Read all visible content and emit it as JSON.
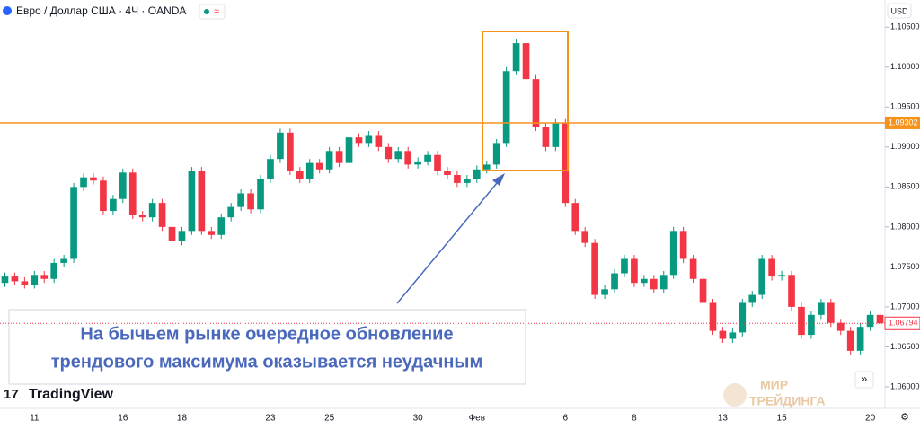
{
  "header": {
    "symbol": "Евро / Доллар США · 4Ч · OANDA",
    "currency": "USD"
  },
  "chart_data": {
    "type": "candlestick",
    "categories": [
      null,
      null,
      null,
      "11",
      null,
      null,
      null,
      null,
      null,
      null,
      null,
      null,
      "16",
      null,
      null,
      null,
      null,
      null,
      "18",
      null,
      null,
      null,
      null,
      null,
      null,
      null,
      null,
      "23",
      null,
      null,
      null,
      null,
      null,
      "25",
      null,
      null,
      null,
      null,
      null,
      null,
      null,
      null,
      "30",
      null,
      null,
      null,
      null,
      null,
      "Фев",
      null,
      null,
      null,
      null,
      null,
      null,
      null,
      null,
      "6",
      null,
      null,
      null,
      null,
      null,
      null,
      "8",
      null,
      null,
      null,
      null,
      null,
      null,
      null,
      null,
      "13",
      null,
      null,
      null,
      null,
      null,
      "15",
      null,
      null,
      null,
      null,
      null,
      null,
      null,
      null,
      "20",
      null
    ],
    "open": [
      1.073,
      1.0738,
      1.0732,
      1.0728,
      1.074,
      1.0735,
      1.0755,
      1.076,
      1.085,
      1.0862,
      1.0858,
      1.082,
      1.0835,
      1.0868,
      1.0815,
      1.0812,
      1.083,
      1.08,
      1.0782,
      1.0795,
      1.087,
      1.0795,
      1.079,
      1.0812,
      1.0825,
      1.0842,
      1.0822,
      1.086,
      1.0885,
      1.0918,
      1.087,
      1.086,
      1.088,
      1.0872,
      1.0895,
      1.088,
      1.0912,
      1.0905,
      1.0915,
      1.09,
      1.0885,
      1.0895,
      1.0878,
      1.0882,
      1.089,
      1.087,
      1.0865,
      1.0855,
      1.086,
      1.0872,
      1.0878,
      1.0905,
      1.0995,
      1.103,
      1.0985,
      1.0925,
      1.09,
      1.093,
      1.083,
      1.0795,
      1.078,
      1.0715,
      1.0722,
      1.0742,
      1.076,
      1.073,
      1.0735,
      1.0722,
      1.074,
      1.0795,
      1.076,
      1.0735,
      1.0705,
      1.067,
      1.066,
      1.0668,
      1.0705,
      1.0715,
      1.076,
      1.0738,
      1.074,
      1.07,
      1.0665,
      1.069,
      1.0705,
      1.068,
      1.067,
      1.0645,
      1.0675,
      1.069
    ],
    "high": [
      1.0743,
      1.0743,
      1.0737,
      1.0745,
      1.0745,
      1.076,
      1.0765,
      1.0855,
      1.0867,
      1.0867,
      1.0863,
      1.084,
      1.0873,
      1.0873,
      1.082,
      1.0835,
      1.0835,
      1.0805,
      1.08,
      1.0875,
      1.0875,
      1.08,
      1.0817,
      1.083,
      1.0847,
      1.0847,
      1.0865,
      1.089,
      1.0923,
      1.0923,
      1.0875,
      1.0885,
      1.0885,
      1.09,
      1.09,
      1.0917,
      1.0917,
      1.092,
      1.092,
      1.0905,
      1.09,
      1.09,
      1.0887,
      1.0895,
      1.0895,
      1.0875,
      1.087,
      1.0865,
      1.0877,
      1.0883,
      1.091,
      1.1,
      1.1035,
      1.1035,
      1.099,
      1.093,
      1.0935,
      1.0935,
      1.0835,
      1.08,
      1.0785,
      1.0727,
      1.0747,
      1.0765,
      1.0765,
      1.074,
      1.074,
      1.0745,
      1.08,
      1.08,
      1.0765,
      1.074,
      1.071,
      1.0675,
      1.0673,
      1.071,
      1.072,
      1.0765,
      1.0765,
      1.0745,
      1.0745,
      1.0705,
      1.0695,
      1.071,
      1.071,
      1.0685,
      1.0675,
      1.068,
      1.0695,
      1.0695
    ],
    "low": [
      1.0725,
      1.0727,
      1.0723,
      1.0723,
      1.073,
      1.073,
      1.075,
      1.0755,
      1.0845,
      1.0853,
      1.0815,
      1.0815,
      1.083,
      1.081,
      1.0807,
      1.0807,
      1.0795,
      1.0777,
      1.0777,
      1.079,
      1.079,
      1.0785,
      1.0785,
      1.0807,
      1.082,
      1.0817,
      1.0817,
      1.0855,
      1.088,
      1.0865,
      1.0855,
      1.0855,
      1.0867,
      1.0867,
      1.0875,
      1.0875,
      1.09,
      1.09,
      1.0895,
      1.088,
      1.088,
      1.0873,
      1.0873,
      1.0877,
      1.0865,
      1.086,
      1.085,
      1.085,
      1.0855,
      1.0867,
      1.0873,
      1.09,
      1.099,
      1.098,
      1.092,
      1.0895,
      1.0895,
      1.0825,
      1.079,
      1.0775,
      1.071,
      1.071,
      1.0717,
      1.0737,
      1.0725,
      1.0725,
      1.0717,
      1.0717,
      1.0735,
      1.0755,
      1.073,
      1.07,
      1.0665,
      1.0655,
      1.0655,
      1.0663,
      1.07,
      1.071,
      1.0733,
      1.0733,
      1.0695,
      1.066,
      1.066,
      1.0685,
      1.0675,
      1.0665,
      1.064,
      1.064,
      1.067,
      1.0674
    ],
    "close": [
      1.0738,
      1.0732,
      1.0728,
      1.074,
      1.0735,
      1.0755,
      1.076,
      1.085,
      1.0862,
      1.0858,
      1.082,
      1.0835,
      1.0868,
      1.0815,
      1.0812,
      1.083,
      1.08,
      1.0782,
      1.0795,
      1.087,
      1.0795,
      1.079,
      1.0812,
      1.0825,
      1.0842,
      1.0822,
      1.086,
      1.0885,
      1.0918,
      1.087,
      1.086,
      1.088,
      1.0872,
      1.0895,
      1.088,
      1.0912,
      1.0905,
      1.0915,
      1.09,
      1.0885,
      1.0895,
      1.0878,
      1.0882,
      1.089,
      1.087,
      1.0865,
      1.0855,
      1.086,
      1.0872,
      1.0878,
      1.0905,
      1.0995,
      1.103,
      1.0985,
      1.0925,
      1.09,
      1.093,
      1.083,
      1.0795,
      1.078,
      1.0715,
      1.0722,
      1.0742,
      1.076,
      1.073,
      1.0735,
      1.0722,
      1.074,
      1.0795,
      1.076,
      1.0735,
      1.0705,
      1.067,
      1.066,
      1.0668,
      1.0705,
      1.0715,
      1.076,
      1.0738,
      1.074,
      1.07,
      1.0665,
      1.069,
      1.0705,
      1.068,
      1.067,
      1.0645,
      1.0675,
      1.069,
      1.06794
    ],
    "up_color": "#089981",
    "down_color": "#f23645",
    "ylim": [
      1.0573,
      1.1084
    ],
    "yticks": [
      {
        "value": 1.06,
        "label": "1.06000"
      },
      {
        "value": 1.065,
        "label": "1.06500"
      },
      {
        "value": 1.07,
        "label": "1.07000"
      },
      {
        "value": 1.075,
        "label": "1.07500"
      },
      {
        "value": 1.08,
        "label": "1.08000"
      },
      {
        "value": 1.085,
        "label": "1.08500"
      },
      {
        "value": 1.09,
        "label": "1.09000"
      },
      {
        "value": 1.095,
        "label": "1.09500"
      },
      {
        "value": 1.1,
        "label": "1.10000"
      },
      {
        "value": 1.105,
        "label": "1.10500"
      }
    ],
    "grid": false,
    "level": 1.09302,
    "level_color": "#f7931a",
    "annotation": [
      "На бычьем рынке очередное обновление",
      "трендового максимума оказывается неудачным"
    ]
  },
  "branding": {
    "logo": "TradingView",
    "watermark": [
      "МИР",
      "ТРЕЙДИНГА"
    ]
  }
}
